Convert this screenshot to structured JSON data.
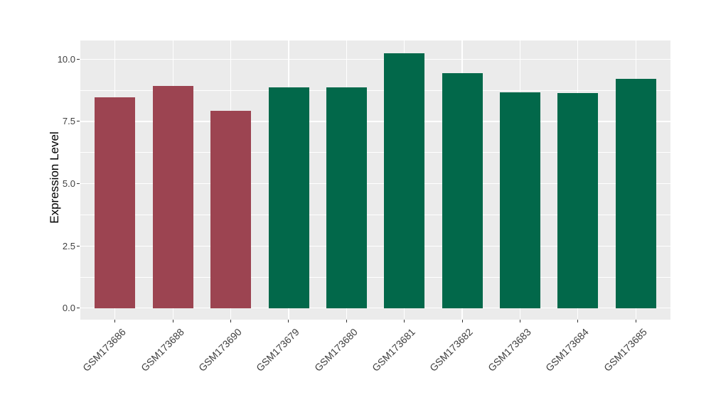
{
  "chart_data": {
    "type": "bar",
    "title": "",
    "xlabel": "",
    "ylabel": "Expression Level",
    "categories": [
      "GSM173686",
      "GSM173688",
      "GSM173690",
      "GSM173679",
      "GSM173680",
      "GSM173681",
      "GSM173682",
      "GSM173683",
      "GSM173684",
      "GSM173685"
    ],
    "values": [
      8.48,
      8.93,
      7.94,
      8.87,
      8.87,
      10.25,
      9.43,
      8.67,
      8.65,
      9.22
    ],
    "bar_groups": [
      "group1",
      "group1",
      "group1",
      "group2",
      "group2",
      "group2",
      "group2",
      "group2",
      "group2",
      "group2"
    ],
    "group_colors": {
      "group1": "#9C4451",
      "group2": "#02684A"
    },
    "y_ticks": [
      "0.0",
      "2.5",
      "5.0",
      "7.5",
      "10.0"
    ],
    "y_tick_values": [
      0,
      2.5,
      5,
      7.5,
      10
    ],
    "y_minor_values": [
      1.25,
      3.75,
      6.25,
      8.75
    ],
    "ylim": [
      -0.46,
      10.75
    ],
    "legend": "none",
    "grid": "on",
    "panel_bg": "#EBEBEB",
    "grid_color": "#FFFFFF",
    "figure_bg": "#FFFFFF"
  }
}
